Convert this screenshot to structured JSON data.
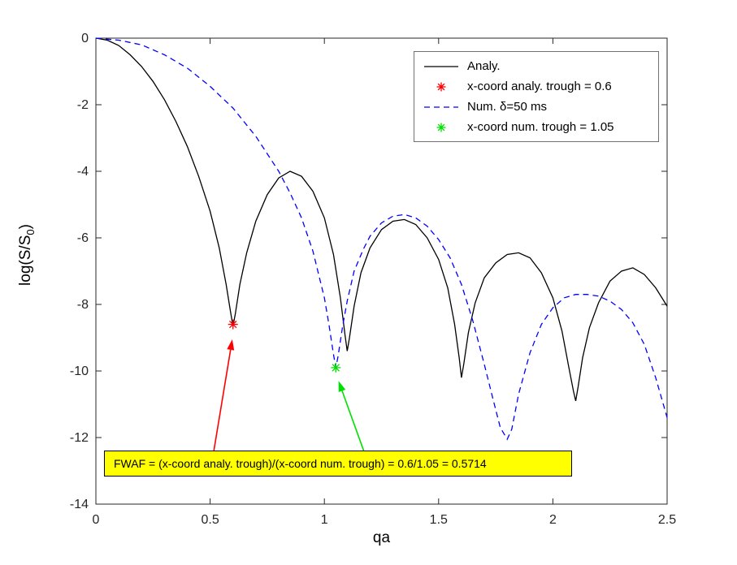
{
  "figure": {
    "background": "#ffffff",
    "axes_color": "#262626",
    "legend_border": "#707070"
  },
  "chart_data": {
    "type": "line",
    "title": "",
    "xlabel": "qa",
    "ylabel": "log(S/S0)",
    "ylabel_parts": {
      "prefix": "log(S/S",
      "sub": "0",
      "suffix": ")"
    },
    "xlim": [
      0,
      2.5
    ],
    "ylim": [
      -14,
      0
    ],
    "xticks": [
      0,
      0.5,
      1,
      1.5,
      2,
      2.5
    ],
    "xtick_labels": [
      "0",
      "0.5",
      "1",
      "1.5",
      "2",
      "2.5"
    ],
    "yticks": [
      0,
      -2,
      -4,
      -6,
      -8,
      -10,
      -12,
      -14
    ],
    "ytick_labels": [
      "0",
      "-2",
      "-4",
      "-6",
      "-8",
      "-10",
      "-12",
      "-14"
    ],
    "grid": false,
    "legend_position": "top-right",
    "series": [
      {
        "name": "Analy.",
        "type": "line",
        "dash": "solid",
        "color": "#000000",
        "points": [
          [
            0,
            0
          ],
          [
            0.05,
            -0.06
          ],
          [
            0.1,
            -0.22
          ],
          [
            0.15,
            -0.5
          ],
          [
            0.2,
            -0.85
          ],
          [
            0.25,
            -1.3
          ],
          [
            0.3,
            -1.85
          ],
          [
            0.35,
            -2.5
          ],
          [
            0.4,
            -3.25
          ],
          [
            0.45,
            -4.15
          ],
          [
            0.5,
            -5.2
          ],
          [
            0.54,
            -6.3
          ],
          [
            0.57,
            -7.4
          ],
          [
            0.59,
            -8.25
          ],
          [
            0.6,
            -8.65
          ],
          [
            0.61,
            -8.3
          ],
          [
            0.63,
            -7.4
          ],
          [
            0.66,
            -6.45
          ],
          [
            0.7,
            -5.5
          ],
          [
            0.75,
            -4.7
          ],
          [
            0.8,
            -4.2
          ],
          [
            0.85,
            -4.0
          ],
          [
            0.9,
            -4.15
          ],
          [
            0.95,
            -4.6
          ],
          [
            1.0,
            -5.4
          ],
          [
            1.04,
            -6.5
          ],
          [
            1.07,
            -7.8
          ],
          [
            1.09,
            -8.9
          ],
          [
            1.1,
            -9.4
          ],
          [
            1.11,
            -9.0
          ],
          [
            1.13,
            -8.05
          ],
          [
            1.16,
            -7.05
          ],
          [
            1.2,
            -6.3
          ],
          [
            1.25,
            -5.75
          ],
          [
            1.3,
            -5.5
          ],
          [
            1.35,
            -5.45
          ],
          [
            1.4,
            -5.6
          ],
          [
            1.45,
            -6.0
          ],
          [
            1.5,
            -6.65
          ],
          [
            1.54,
            -7.5
          ],
          [
            1.57,
            -8.6
          ],
          [
            1.59,
            -9.6
          ],
          [
            1.6,
            -10.2
          ],
          [
            1.61,
            -9.8
          ],
          [
            1.63,
            -8.85
          ],
          [
            1.66,
            -7.95
          ],
          [
            1.7,
            -7.2
          ],
          [
            1.75,
            -6.75
          ],
          [
            1.8,
            -6.5
          ],
          [
            1.85,
            -6.45
          ],
          [
            1.9,
            -6.6
          ],
          [
            1.95,
            -7.05
          ],
          [
            2.0,
            -7.8
          ],
          [
            2.04,
            -8.8
          ],
          [
            2.07,
            -9.9
          ],
          [
            2.09,
            -10.6
          ],
          [
            2.1,
            -10.9
          ],
          [
            2.11,
            -10.5
          ],
          [
            2.13,
            -9.6
          ],
          [
            2.16,
            -8.7
          ],
          [
            2.2,
            -7.95
          ],
          [
            2.25,
            -7.3
          ],
          [
            2.3,
            -7.0
          ],
          [
            2.35,
            -6.9
          ],
          [
            2.4,
            -7.1
          ],
          [
            2.45,
            -7.5
          ],
          [
            2.5,
            -8.05
          ]
        ]
      },
      {
        "name": "x-coord analy. trough = 0.6",
        "type": "marker",
        "marker": "asterisk",
        "color": "#ff0000",
        "points": [
          [
            0.6,
            -8.6
          ]
        ]
      },
      {
        "name": "Num. δ=50 ms",
        "type": "line",
        "dash": "dashed",
        "color": "#0000ff",
        "points": [
          [
            0,
            0
          ],
          [
            0.1,
            -0.06
          ],
          [
            0.2,
            -0.2
          ],
          [
            0.3,
            -0.5
          ],
          [
            0.4,
            -0.9
          ],
          [
            0.5,
            -1.45
          ],
          [
            0.6,
            -2.1
          ],
          [
            0.7,
            -2.95
          ],
          [
            0.8,
            -4.0
          ],
          [
            0.85,
            -4.65
          ],
          [
            0.9,
            -5.4
          ],
          [
            0.95,
            -6.4
          ],
          [
            1.0,
            -7.8
          ],
          [
            1.02,
            -8.6
          ],
          [
            1.04,
            -9.5
          ],
          [
            1.05,
            -9.9
          ],
          [
            1.06,
            -9.55
          ],
          [
            1.08,
            -8.65
          ],
          [
            1.1,
            -7.9
          ],
          [
            1.13,
            -7.0
          ],
          [
            1.17,
            -6.35
          ],
          [
            1.2,
            -5.95
          ],
          [
            1.25,
            -5.55
          ],
          [
            1.3,
            -5.35
          ],
          [
            1.35,
            -5.3
          ],
          [
            1.4,
            -5.4
          ],
          [
            1.45,
            -5.65
          ],
          [
            1.5,
            -6.05
          ],
          [
            1.55,
            -6.6
          ],
          [
            1.6,
            -7.4
          ],
          [
            1.65,
            -8.5
          ],
          [
            1.7,
            -9.8
          ],
          [
            1.74,
            -10.9
          ],
          [
            1.77,
            -11.7
          ],
          [
            1.8,
            -12.05
          ],
          [
            1.82,
            -11.75
          ],
          [
            1.85,
            -10.7
          ],
          [
            1.9,
            -9.45
          ],
          [
            1.95,
            -8.6
          ],
          [
            2.0,
            -8.1
          ],
          [
            2.05,
            -7.8
          ],
          [
            2.1,
            -7.7
          ],
          [
            2.15,
            -7.7
          ],
          [
            2.2,
            -7.75
          ],
          [
            2.25,
            -7.9
          ],
          [
            2.3,
            -8.15
          ],
          [
            2.35,
            -8.55
          ],
          [
            2.4,
            -9.2
          ],
          [
            2.45,
            -10.2
          ],
          [
            2.5,
            -11.4
          ]
        ]
      },
      {
        "name": "x-coord num. trough = 1.05",
        "type": "marker",
        "marker": "asterisk",
        "color": "#00e000",
        "points": [
          [
            1.05,
            -9.9
          ]
        ]
      }
    ],
    "annotations": {
      "arrows": [
        {
          "name": "analy-trough-arrow",
          "color": "#ff0000",
          "from": [
            0.515,
            -12.45
          ],
          "to": [
            0.597,
            -9.05
          ]
        },
        {
          "name": "num-trough-arrow",
          "color": "#00e000",
          "from": [
            1.175,
            -12.45
          ],
          "to": [
            1.062,
            -10.3
          ]
        }
      ],
      "textbox": {
        "text": "FWAF = (x-coord analy. trough)/(x-coord num. trough) = 0.6/1.05 = 0.5714",
        "bg": "#ffff00",
        "border": "#000000"
      }
    }
  }
}
